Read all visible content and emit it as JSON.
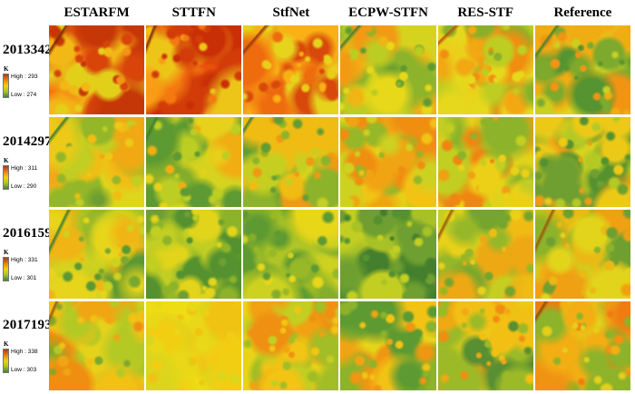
{
  "figure": {
    "background": "#ffffff",
    "text_color": "#000000",
    "columns": [
      "ESTARFM",
      "STTFN",
      "StfNet",
      "ECPW-STFN",
      "RES-STF",
      "Reference"
    ],
    "legend_gradient": [
      "#b03a06",
      "#ef7d10",
      "#f2cf16",
      "#a9c426",
      "#3f8530"
    ],
    "rows": [
      {
        "label": "2013342",
        "legend": {
          "unit": "K",
          "high": "High : 293",
          "low": "Low : 274"
        },
        "cells": [
          {
            "base": "#ef7210",
            "blobs": [
              "#d8440a",
              "#f59414",
              "#f2b815",
              "#e2cf1a",
              "#c63708"
            ],
            "streak": "#7e2a06"
          },
          {
            "base": "#e8500c",
            "blobs": [
              "#d23c08",
              "#f47a10",
              "#f79e15",
              "#ecc518",
              "#c92f06"
            ],
            "streak": "#7e2a06"
          },
          {
            "base": "#f59012",
            "blobs": [
              "#ef6c0e",
              "#f8b015",
              "#e9cd18",
              "#d8480a",
              "#e6d41c"
            ],
            "streak": "#9a3a08"
          },
          {
            "base": "#d6d31e",
            "blobs": [
              "#bccd22",
              "#f0b414",
              "#8db32a",
              "#5e9a32",
              "#f29a14",
              "#e8d81a"
            ],
            "streak": "#47822e"
          },
          {
            "base": "#ead01a",
            "blobs": [
              "#f2a813",
              "#e6d81c",
              "#bdcd22",
              "#f08e11",
              "#8aaf2b"
            ],
            "streak": "#b45a0c"
          },
          {
            "base": "#e0d41c",
            "blobs": [
              "#f0ac13",
              "#c9d020",
              "#7da92d",
              "#559430",
              "#f29413"
            ],
            "streak": "#47822e"
          }
        ]
      },
      {
        "label": "2014297",
        "legend": {
          "unit": "K",
          "high": "High : 311",
          "low": "Low : 290"
        },
        "cells": [
          {
            "base": "#ded51d",
            "blobs": [
              "#c2ce22",
              "#f0a813",
              "#93b728",
              "#ecca17",
              "#6f9f30",
              "#f2bc14"
            ],
            "streak": "#3f7f2e"
          },
          {
            "base": "#d6d31f",
            "blobs": [
              "#bccd23",
              "#f0ae13",
              "#85ad2c",
              "#e8d11a",
              "#5e9a32"
            ],
            "streak": "#3f7f2e"
          },
          {
            "base": "#e0d41c",
            "blobs": [
              "#ef9a12",
              "#c6cf21",
              "#8db32a",
              "#f0bc14",
              "#649c31"
            ],
            "streak": "#477f2e"
          },
          {
            "base": "#e6d41a",
            "blobs": [
              "#f0a413",
              "#cdd120",
              "#95b728",
              "#f2c314",
              "#ef8e11"
            ]
          },
          {
            "base": "#e2d21b",
            "blobs": [
              "#f0a013",
              "#c2ce22",
              "#8db32a",
              "#ecd018",
              "#ef8611"
            ]
          },
          {
            "base": "#d8d31e",
            "blobs": [
              "#ef9c12",
              "#b5c924",
              "#6f9f30",
              "#ecc917",
              "#55922f"
            ]
          }
        ]
      },
      {
        "label": "2016159",
        "legend": {
          "unit": "K",
          "high": "High : 331",
          "low": "Low : 301"
        },
        "cells": [
          {
            "base": "#a7c226",
            "blobs": [
              "#7ba72e",
              "#cdd120",
              "#5c9832",
              "#e6d51a",
              "#f0b414"
            ],
            "streak": "#3f7f2e"
          },
          {
            "base": "#9cbc28",
            "blobs": [
              "#6f9f30",
              "#c2ce22",
              "#55922f",
              "#e2d41b",
              "#8db32a"
            ]
          },
          {
            "base": "#afc525",
            "blobs": [
              "#85ad2c",
              "#cdd120",
              "#5e9a32",
              "#e8d619",
              "#98b927"
            ]
          },
          {
            "base": "#86ae2b",
            "blobs": [
              "#55922f",
              "#a7c126",
              "#447f2d",
              "#c2ce22",
              "#6f9f30"
            ]
          },
          {
            "base": "#c6ce21",
            "blobs": [
              "#95b728",
              "#eda813",
              "#76a52e",
              "#e8d11a",
              "#f0bc14"
            ],
            "streak": "#9a5a0c"
          },
          {
            "base": "#cbd020",
            "blobs": [
              "#8db32a",
              "#eab915",
              "#f0a013",
              "#6f9f30",
              "#e2d41b"
            ],
            "streak": "#9a5a0c"
          }
        ]
      },
      {
        "label": "2017193",
        "legend": {
          "unit": "K",
          "high": "High : 338",
          "low": "Low : 303"
        },
        "cells": [
          {
            "base": "#e6d21a",
            "blobs": [
              "#f0a613",
              "#b5c924",
              "#f2c114",
              "#7da92d",
              "#ef8e11"
            ],
            "streak": "#9a5a0c"
          },
          {
            "base": "#eedd14",
            "blobs": [
              "#e8d818",
              "#f2ce12",
              "#dcd51c",
              "#f0c313"
            ]
          },
          {
            "base": "#e8d318",
            "blobs": [
              "#f0a213",
              "#a2bd26",
              "#f2c414",
              "#ef9012",
              "#c2ce22"
            ]
          },
          {
            "base": "#e5d41a",
            "blobs": [
              "#f0a413",
              "#8db32a",
              "#5e9a32",
              "#f2c314",
              "#ef9612"
            ]
          },
          {
            "base": "#e6cf19",
            "blobs": [
              "#f0a813",
              "#9cba27",
              "#578f32",
              "#f2c014",
              "#ef8e11"
            ]
          },
          {
            "base": "#eabf14",
            "blobs": [
              "#f09212",
              "#e4d01a",
              "#8db32a",
              "#f07c10",
              "#f2ae13"
            ],
            "streak": "#9a4a0a"
          }
        ]
      }
    ]
  }
}
